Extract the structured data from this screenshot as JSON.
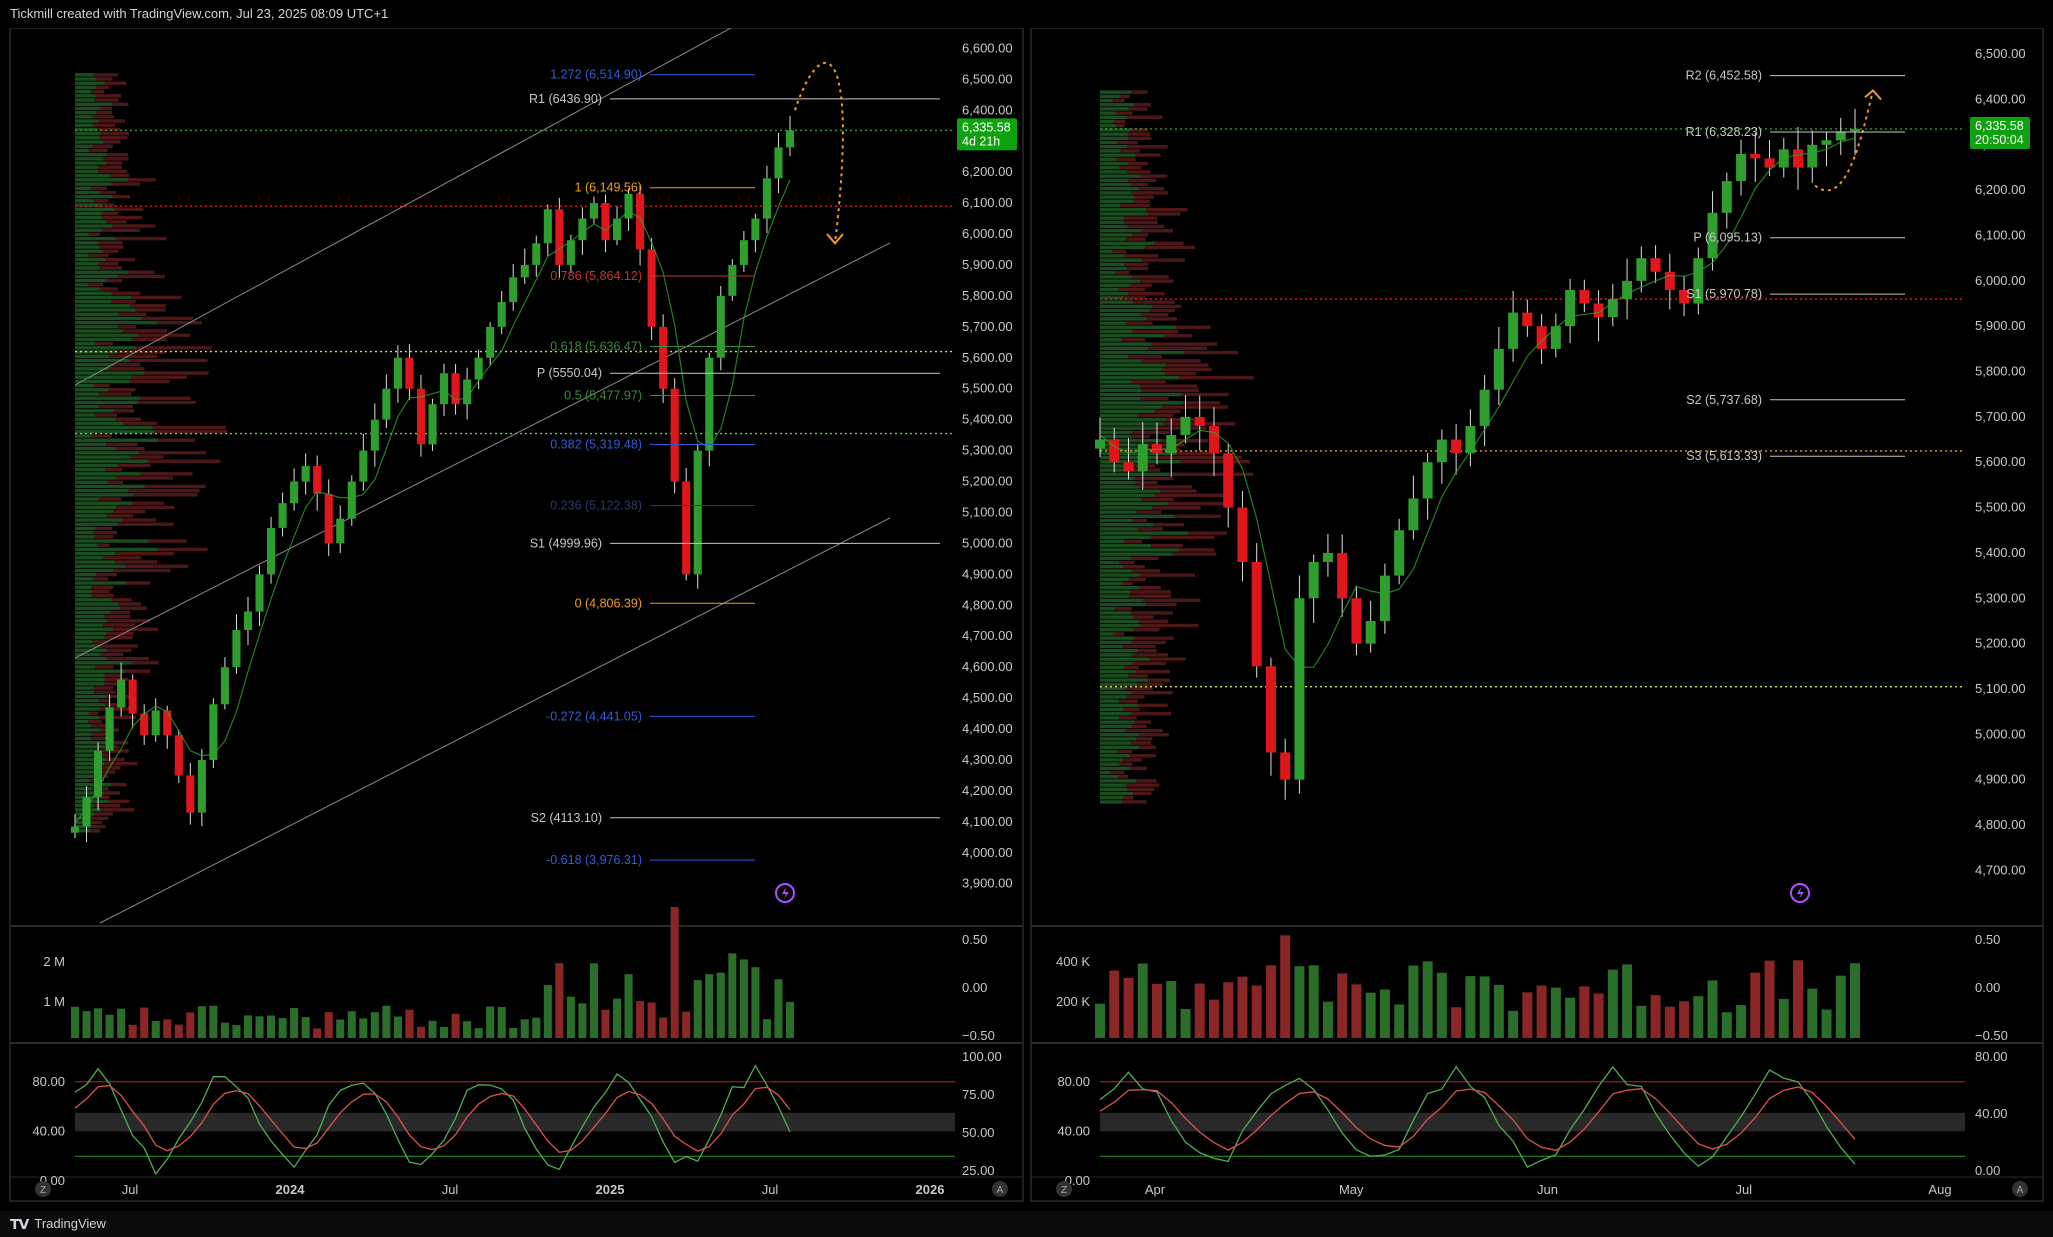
{
  "header": {
    "caption": "Tickmill created with TradingView.com, Jul 23, 2025 08:09 UTC+1"
  },
  "footer": {
    "brand": "TradingView"
  },
  "colors": {
    "up": "#2e9e2e",
    "down": "#e0161d",
    "fib_orange": "#f29b21",
    "fib_blue": "#2d5fd8",
    "fib_green": "#3b8a3b",
    "pivot_line": "#c8c8c8",
    "last_price_bg": "#0fa10f"
  },
  "chart_data": [
    {
      "type": "line",
      "panel": "left",
      "series": [
        {
          "values": [
            4085,
            4180,
            4330,
            4470,
            4560,
            4450,
            4380,
            4460,
            4380,
            4250,
            4130,
            4300,
            4480,
            4600,
            4720,
            4780,
            4900,
            5050,
            5130,
            5200,
            5250,
            5160,
            5000,
            5080,
            5200,
            5300,
            5400,
            5500,
            5600,
            5500,
            5320,
            5450,
            5550,
            5450,
            5530,
            5600,
            5700,
            5780,
            5860,
            5900,
            5970,
            6080,
            5900,
            5980,
            6050,
            6100,
            5980,
            6050,
            6130,
            5950,
            5700,
            5500,
            5200,
            4900,
            5300,
            5600,
            5800,
            5900,
            5980,
            6050,
            6180,
            6280,
            6335
          ]
        }
      ],
      "price_axis_labels": [
        "6,600.00",
        "6,500.00",
        "6,400.00",
        "6,300.00",
        "6,200.00",
        "6,100.00",
        "6,000.00",
        "5,900.00",
        "5,800.00",
        "5,700.00",
        "5,600.00",
        "5,500.00",
        "5,400.00",
        "5,300.00",
        "5,200.00",
        "5,100.00",
        "5,000.00",
        "4,900.00",
        "4,800.00",
        "4,700.00",
        "4,600.00",
        "4,500.00",
        "4,400.00",
        "4,300.00",
        "4,200.00",
        "4,100.00",
        "4,000.00",
        "3,900.00"
      ],
      "ylim": [
        3870,
        6640
      ],
      "time_labels": [
        "Jul",
        "2024",
        "Jul",
        "2025",
        "Jul",
        "2026"
      ],
      "last_price": "6,335.58",
      "countdown": "4d 21h",
      "levels": [
        {
          "label": "1.272 (6,514.90)",
          "value": 6514.9,
          "kind": "fib_blue"
        },
        {
          "label": "R1 (6436.90)",
          "value": 6436.9,
          "kind": "pivot"
        },
        {
          "label": "1 (6,149.56)",
          "value": 6149.56,
          "kind": "fib_orange"
        },
        {
          "label": "0.786 (5,864.12)",
          "value": 5864.12,
          "kind": "fib_red"
        },
        {
          "label": "0.618 (5,636.47)",
          "value": 5636.47,
          "kind": "fib_green"
        },
        {
          "label": "P (5550.04)",
          "value": 5550.04,
          "kind": "pivot"
        },
        {
          "label": "0.5 (5,477.97)",
          "value": 5477.97,
          "kind": "fib_green"
        },
        {
          "label": "0.382 (5,319.48)",
          "value": 5319.48,
          "kind": "fib_blue"
        },
        {
          "label": "0.236 (5,122.38)",
          "value": 5122.38,
          "kind": "fib_dim"
        },
        {
          "label": "S1 (4999.96)",
          "value": 4999.96,
          "kind": "pivot"
        },
        {
          "label": "0 (4,806.39)",
          "value": 4806.39,
          "kind": "fib_orange"
        },
        {
          "label": "-0.272 (4,441.05)",
          "value": 4441.05,
          "kind": "fib_blue"
        },
        {
          "label": "S2 (4113.10)",
          "value": 4113.1,
          "kind": "pivot"
        },
        {
          "label": "-0.618 (3,976.31)",
          "value": 3976.31,
          "kind": "fib_blue"
        }
      ],
      "volume": {
        "axis_labels": [
          "2 M",
          "1 M"
        ],
        "right_labels": [
          "0.50",
          "0.00",
          "−0.50"
        ]
      },
      "oscillator": {
        "left_labels": [
          "80.00",
          "40.00",
          "0.00"
        ],
        "right_labels": [
          "100.00",
          "75.00",
          "50.00",
          "25.00"
        ]
      }
    },
    {
      "type": "line",
      "panel": "right",
      "series": [
        {
          "values": [
            5650,
            5600,
            5580,
            5640,
            5620,
            5660,
            5700,
            5680,
            5620,
            5500,
            5380,
            5150,
            4960,
            4900,
            5300,
            5380,
            5400,
            5300,
            5200,
            5250,
            5350,
            5450,
            5520,
            5600,
            5650,
            5620,
            5680,
            5760,
            5850,
            5930,
            5900,
            5850,
            5900,
            5980,
            5950,
            5920,
            5960,
            6000,
            6050,
            6020,
            5980,
            5950,
            6050,
            6150,
            6220,
            6280,
            6270,
            6250,
            6290,
            6250,
            6300,
            6310,
            6330,
            6335
          ]
        }
      ],
      "price_axis_labels": [
        "6,500.00",
        "6,400.00",
        "6,300.00",
        "6,200.00",
        "6,100.00",
        "6,000.00",
        "5,900.00",
        "5,800.00",
        "5,700.00",
        "5,600.00",
        "5,500.00",
        "5,400.00",
        "5,300.00",
        "5,200.00",
        "5,100.00",
        "5,000.00",
        "4,900.00",
        "4,800.00",
        "4,700.00"
      ],
      "ylim": [
        4650,
        6540
      ],
      "time_labels": [
        "Apr",
        "May",
        "Jun",
        "Jul",
        "Aug"
      ],
      "last_price": "6,335.58",
      "countdown": "20:50:04",
      "levels": [
        {
          "label": "R2 (6,452.58)",
          "value": 6452.58,
          "kind": "pivot"
        },
        {
          "label": "R1 (6,328.23)",
          "value": 6328.23,
          "kind": "pivot"
        },
        {
          "label": "P (6,095.13)",
          "value": 6095.13,
          "kind": "pivot"
        },
        {
          "label": "S1 (5,970.78)",
          "value": 5970.78,
          "kind": "pivot"
        },
        {
          "label": "S2 (5,737.68)",
          "value": 5737.68,
          "kind": "pivot"
        },
        {
          "label": "S3 (5,613.33)",
          "value": 5613.33,
          "kind": "pivot"
        }
      ],
      "volume": {
        "axis_labels": [
          "400 K",
          "200 K"
        ],
        "right_labels": [
          "0.50",
          "0.00",
          "−0.50"
        ]
      },
      "oscillator": {
        "left_labels": [
          "80.00",
          "40.00",
          "0.00"
        ],
        "right_labels": [
          "80.00",
          "40.00",
          "0.00"
        ]
      }
    }
  ]
}
